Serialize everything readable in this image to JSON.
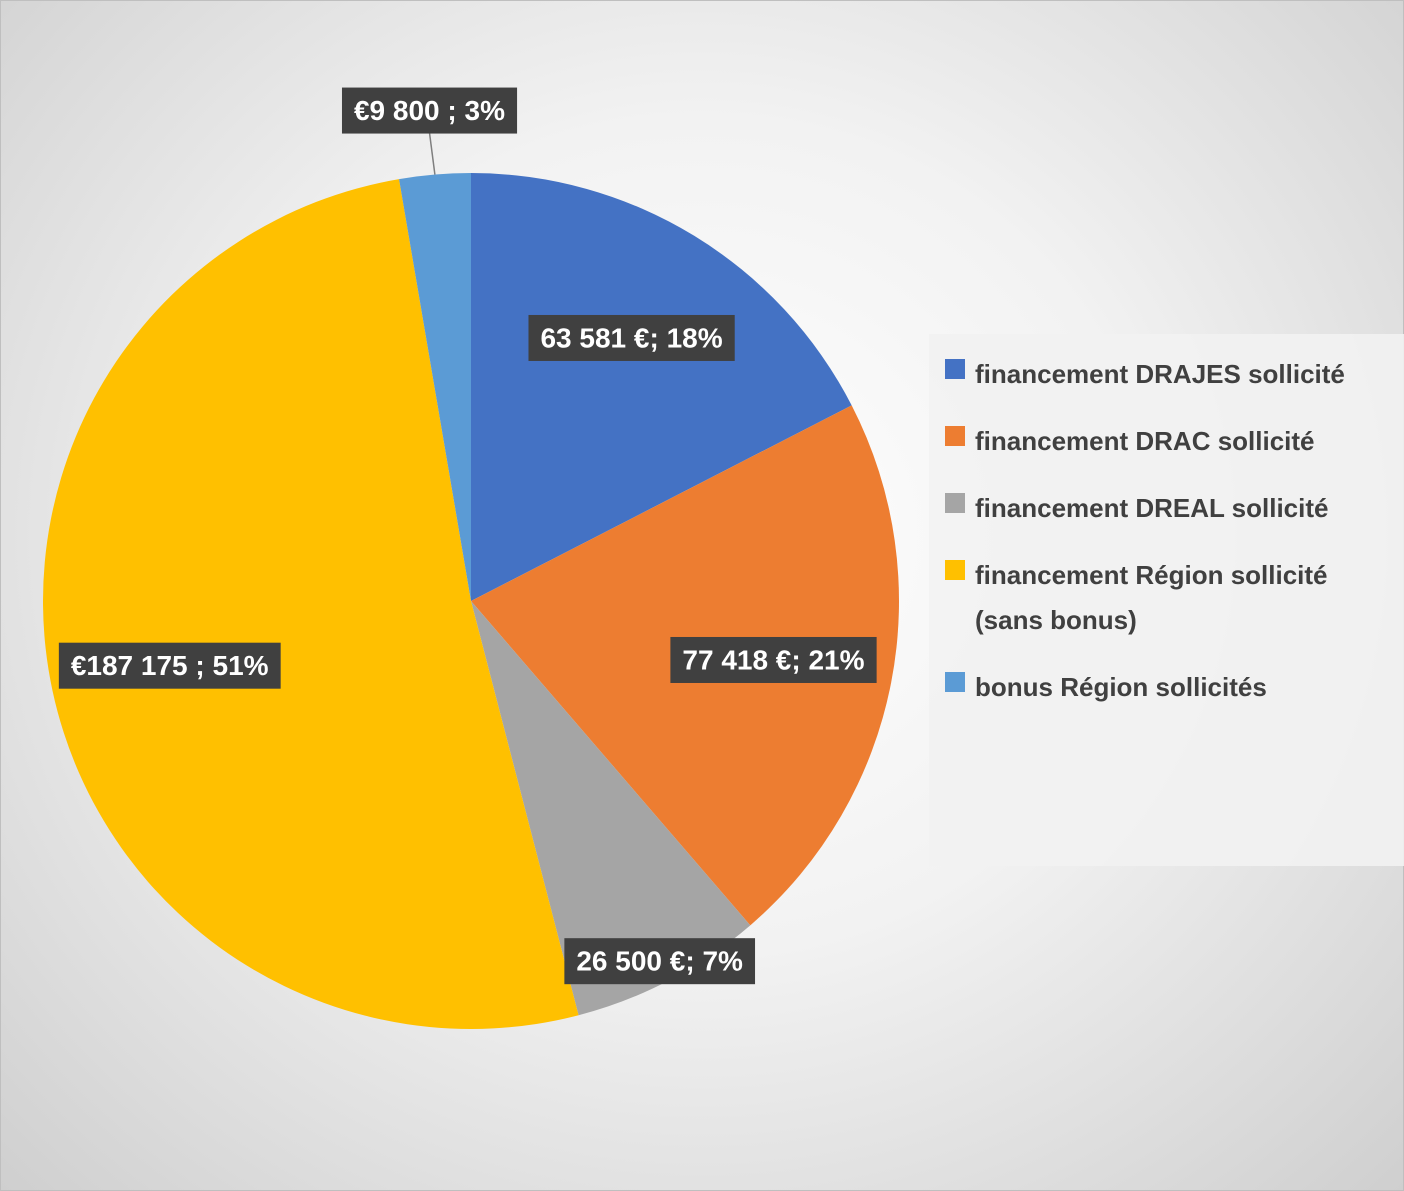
{
  "chart_data": {
    "type": "pie",
    "categories": [
      "financement DRAJES sollicité",
      "financement DRAC sollicité",
      "financement DREAL sollicité",
      "financement Région sollicité (sans bonus)",
      "bonus Région sollicités"
    ],
    "values": [
      63581,
      77418,
      26500,
      187175,
      9800
    ],
    "value_labels": [
      "63 581 €; 18%",
      "77 418 €; 21%",
      "26 500 €; 7%",
      "€187 175 ; 51%",
      "€9 800 ; 3%"
    ],
    "colors": [
      "#4472c4",
      "#ed7d31",
      "#a5a5a5",
      "#ffc000",
      "#5b9bd5"
    ],
    "legend": "right"
  }
}
